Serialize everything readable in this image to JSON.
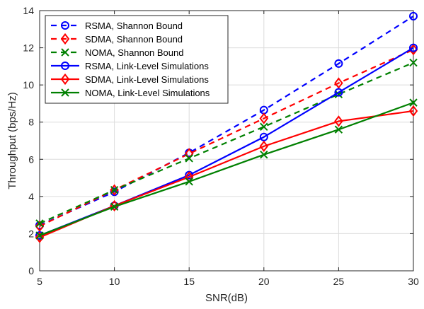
{
  "chart_data": {
    "type": "line",
    "xlabel": "SNR(dB)",
    "ylabel": "Throughput (bps/Hz)",
    "xlim": [
      5,
      30
    ],
    "ylim": [
      0,
      14
    ],
    "xticks": [
      5,
      10,
      15,
      20,
      25,
      30
    ],
    "yticks": [
      0,
      2,
      4,
      6,
      8,
      10,
      12,
      14
    ],
    "grid": true,
    "legend_position": "top-left",
    "x": [
      5,
      10,
      15,
      20,
      25,
      30
    ],
    "series": [
      {
        "name": "RSMA, Shannon Bound",
        "color": "#0000ff",
        "dashed": true,
        "marker": "circle",
        "values": [
          2.45,
          4.25,
          6.35,
          8.65,
          11.15,
          13.7
        ]
      },
      {
        "name": "SDMA, Shannon Bound",
        "color": "#ff0000",
        "dashed": true,
        "marker": "diamond",
        "values": [
          2.4,
          4.35,
          6.3,
          8.2,
          10.1,
          11.9
        ]
      },
      {
        "name": "NOMA, Shannon Bound",
        "color": "#008000",
        "dashed": true,
        "marker": "x",
        "values": [
          2.55,
          4.35,
          6.05,
          7.75,
          9.5,
          11.2
        ]
      },
      {
        "name": "RSMA, Link-Level Simulations",
        "color": "#0000ff",
        "dashed": false,
        "marker": "circle",
        "values": [
          1.9,
          3.5,
          5.15,
          7.2,
          9.6,
          12.0
        ]
      },
      {
        "name": "SDMA, Link-Level Simulations",
        "color": "#ff0000",
        "dashed": false,
        "marker": "diamond",
        "values": [
          1.8,
          3.5,
          5.05,
          6.7,
          8.05,
          8.6
        ]
      },
      {
        "name": "NOMA, Link-Level Simulations",
        "color": "#008000",
        "dashed": false,
        "marker": "x",
        "values": [
          1.9,
          3.45,
          4.8,
          6.25,
          7.6,
          9.05
        ]
      }
    ]
  }
}
